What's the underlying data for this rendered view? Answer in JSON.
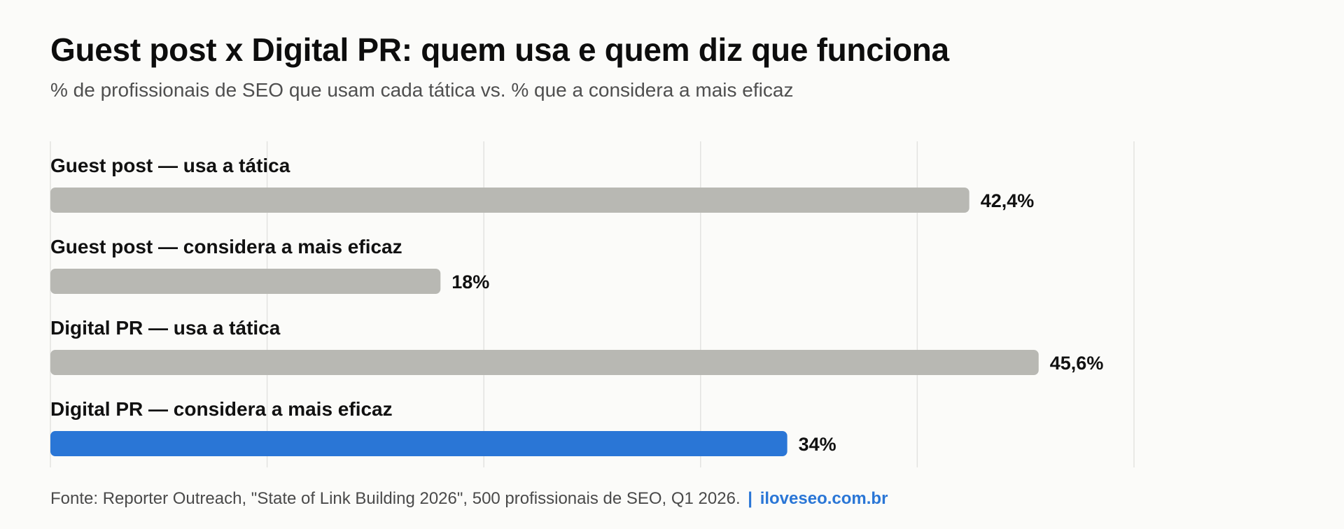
{
  "header": {
    "title": "Guest post x Digital PR: quem usa e quem diz que funciona",
    "subtitle": "% de profissionais de SEO que usam cada tática vs. % que a considera a mais eficaz"
  },
  "footer": {
    "source": "Fonte: Reporter Outreach, \"State of Link Building 2026\", 500 profissionais de SEO, Q1 2026.",
    "separator": "|",
    "brand": "iloveseo.com.br"
  },
  "chart_data": {
    "type": "bar",
    "orientation": "horizontal",
    "title": "Guest post x Digital PR: quem usa e quem diz que funciona",
    "subtitle": "% de profissionais de SEO que usam cada tática vs. % que a considera a mais eficaz",
    "xlabel": "",
    "ylabel": "",
    "xlim": [
      0,
      50
    ],
    "grid": true,
    "legend": "none",
    "categories": [
      "Guest post — usa a tática",
      "Guest post — considera a mais eficaz",
      "Digital PR — usa a tática",
      "Digital PR — considera a mais eficaz"
    ],
    "values": [
      42.4,
      18,
      45.6,
      34
    ],
    "value_labels": [
      "42,4%",
      "18%",
      "45,6%",
      "34%"
    ],
    "colors": {
      "default": "#b8b8b3",
      "highlight": "#2a76d6",
      "grid": "#e3e3e0",
      "text": "#111111"
    },
    "highlight_index": 3
  }
}
